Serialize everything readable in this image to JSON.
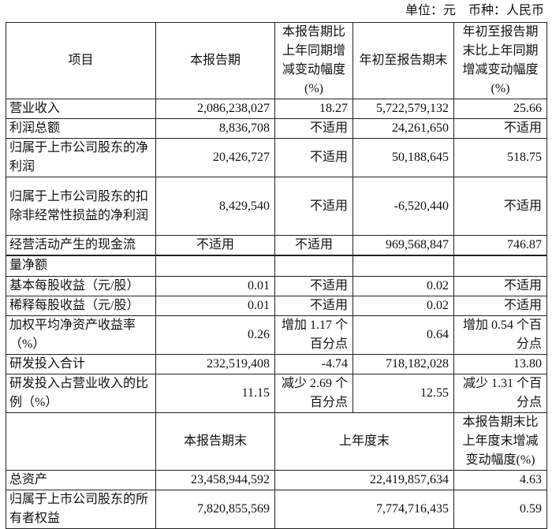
{
  "unit_note": "单位：元　币种：人民币",
  "header": [
    "项目",
    "本报告期",
    "本报告期比上年同期增减变动幅度(%)",
    "年初至报告期末",
    "年初至报告期末比上年同期增减变动幅度(%)"
  ],
  "rows": [
    {
      "item": "营业收入",
      "c1": "2,086,238,027",
      "c2": "18.27",
      "c3": "5,722,579,132",
      "c4": "25.66"
    },
    {
      "item": "利润总额",
      "c1": "8,836,708",
      "c2": "不适用",
      "c3": "24,261,650",
      "c4": "不适用"
    },
    {
      "item": "归属于上市公司股东的净利润",
      "c1": "20,426,727",
      "c2": "不适用",
      "c3": "50,188,645",
      "c4": "518.75"
    },
    {
      "item": "归属于上市公司股东的扣除非经常性损益的净利润",
      "c1": "8,429,540",
      "c2": "不适用",
      "c3": "-6,520,440",
      "c4": "不适用"
    },
    {
      "item": "经营活动产生的现金流",
      "c1": "不适用",
      "c2": "不适用",
      "c3": "969,568,847",
      "c4": "746.87"
    },
    {
      "item": "量净额",
      "c1": "",
      "c2": "",
      "c3": "",
      "c4": ""
    },
    {
      "item": "基本每股收益（元/股）",
      "c1": "0.01",
      "c2": "不适用",
      "c3": "0.02",
      "c4": "不适用"
    },
    {
      "item": "稀释每股收益（元/股）",
      "c1": "0.01",
      "c2": "不适用",
      "c3": "0.02",
      "c4": "不适用"
    },
    {
      "item": "加权平均净资产收益率（%）",
      "c1": "0.26",
      "c2": "增加 1.17 个百分点",
      "c3": "0.64",
      "c4": "增加 0.54 个百分点"
    },
    {
      "item": "研发投入合计",
      "c1": "232,519,408",
      "c2": "-4.74",
      "c3": "718,182,028",
      "c4": "13.80"
    },
    {
      "item": "研发投入占营业收入的比例（%）",
      "c1": "11.15",
      "c2": "减少 2.69 个百分点",
      "c3": "12.55",
      "c4": "减少 1.31 个百分点"
    }
  ],
  "header2": [
    "",
    "本报告期末",
    "上年度末",
    "本报告期末比上年度末增减变动幅度(%)"
  ],
  "rows2": [
    {
      "item": "总资产",
      "c1": "23,458,944,592",
      "c2": "22,419,857,634",
      "c3": "4.63"
    },
    {
      "item": "归属于上市公司股东的所有者权益",
      "c1": "7,820,855,569",
      "c2": "7,774,716,435",
      "c3": "0.59"
    }
  ]
}
